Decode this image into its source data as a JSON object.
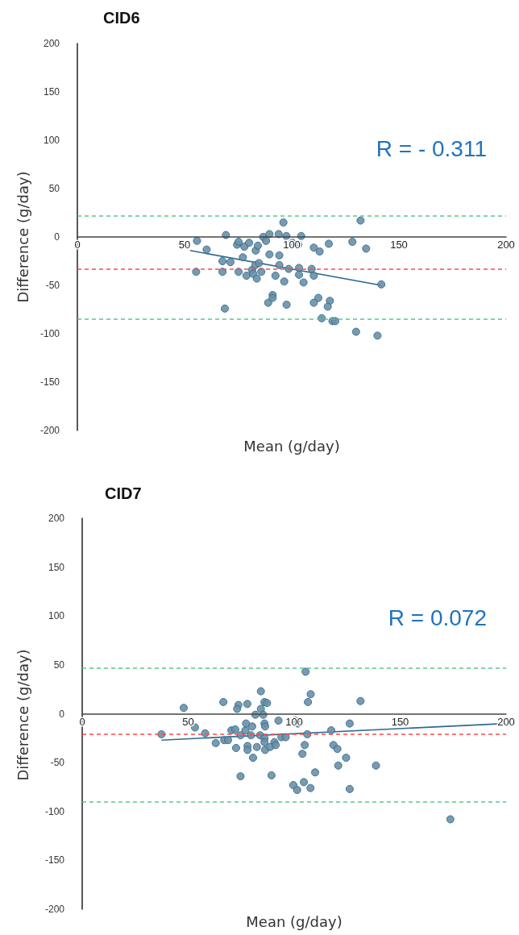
{
  "chart_data": [
    {
      "type": "scatter",
      "title": "CID6",
      "xlabel": "Mean (g/day)",
      "ylabel": "Difference (g/day)",
      "xlim": [
        0,
        200
      ],
      "ylim": [
        -200,
        200
      ],
      "xticks": [
        0,
        50,
        100,
        150,
        200
      ],
      "yticks": [
        -200,
        -150,
        -100,
        -50,
        0,
        50,
        100,
        150,
        200
      ],
      "series": [
        {
          "type": "scatter",
          "marker": "circle",
          "color": "#6b8fa6",
          "x": [
            55.8,
            55.4,
            60.3,
            67.7,
            67.7,
            68.8,
            69.3,
            71.4,
            74.5,
            75.2,
            75.2,
            77.2,
            77.9,
            78.9,
            80.1,
            81.5,
            82,
            83,
            83.2,
            83.7,
            84.2,
            84.7,
            85.8,
            86.7,
            88,
            89.6,
            89.6,
            89,
            91.1,
            91.1,
            92.4,
            93.9,
            94.2,
            94.2,
            96.1,
            96.5,
            97.5,
            97.6,
            98.6,
            100.3,
            103,
            104.4,
            103.4,
            103.4,
            105.5,
            109.3,
            110.3,
            110.3,
            113,
            117.3,
            112.4,
            110.3,
            117.8,
            116.8,
            114,
            119,
            120.3,
            130,
            128.3,
            132.1,
            134.7,
            141.8,
            140
          ],
          "values": [
            -4,
            -36,
            -13,
            -25,
            -36,
            -74,
            2,
            -26,
            -8,
            -5,
            -36,
            -21,
            -10,
            -40,
            -6,
            -34,
            -38,
            -29,
            -14,
            -43,
            -9,
            -27,
            -36,
            0,
            -4,
            3,
            -18,
            -68,
            -60,
            -63,
            -40,
            3,
            -19,
            -29,
            15,
            -46,
            1,
            -70,
            -33,
            -6,
            -8,
            1,
            -32,
            -39,
            -47,
            -33,
            -40,
            -11,
            -15,
            -7,
            -63,
            -68,
            -66,
            -72,
            -84,
            -87,
            -87,
            -98,
            -5,
            17,
            -12,
            -49,
            -102
          ]
        },
        {
          "type": "line",
          "marker": "none",
          "color": "#2e6a8e",
          "x": [
            52.6,
            141.8
          ],
          "values": [
            -14,
            -50
          ]
        }
      ],
      "ref_lines": [
        {
          "axis": "y",
          "value": 22,
          "color": "#55c98a",
          "line_style": "dashed"
        },
        {
          "axis": "y",
          "value": -33,
          "color": "#ff4a4a",
          "line_style": "dashed"
        },
        {
          "axis": "y",
          "value": -85,
          "color": "#55c98a",
          "line_style": "dashed"
        }
      ],
      "annotations": [
        "R = - 0.311"
      ]
    },
    {
      "type": "scatter",
      "title": "CID7",
      "xlabel": "Mean (g/day)",
      "ylabel": "Difference (g/day)",
      "xlim": [
        0,
        200
      ],
      "ylim": [
        -200,
        200
      ],
      "xticks": [
        0,
        50,
        100,
        150,
        200
      ],
      "yticks": [
        -200,
        -150,
        -100,
        -50,
        0,
        50,
        100,
        150,
        200
      ],
      "series": [
        {
          "type": "scatter",
          "marker": "circle",
          "color": "#6b8fa6",
          "x": [
            37.4,
            53.2,
            58,
            63,
            67,
            68.8,
            70.4,
            72.2,
            72.6,
            74.7,
            74.7,
            77,
            77.3,
            78,
            78,
            79.6,
            80.2,
            80.6,
            81.7,
            82.4,
            83.9,
            86,
            86.3,
            86,
            86,
            86.3,
            88.7,
            89.3,
            90.7,
            91.3,
            92.6,
            94,
            96,
            99.6,
            100.4,
            101.8,
            101.4,
            103.9,
            104.6,
            105,
            106.2,
            107.7,
            109.9,
            117.5,
            118.5,
            120.4,
            120.8,
            124.5,
            126.2,
            126.2,
            138.6,
            173.7,
            47.9,
            66.6,
            73.7,
            73.1,
            77.9,
            84.3,
            84.3,
            86,
            87.2,
            85.4,
            105.4,
            107.8,
            106.5,
            131.3
          ],
          "values": [
            -21,
            -14,
            -20,
            -30,
            -27,
            -27,
            -17,
            -16,
            -35,
            -64,
            -22,
            -17,
            -10,
            -33,
            -37,
            -22,
            -13,
            -45,
            -1,
            -34,
            -22,
            -10,
            -13,
            -25,
            -29,
            -37,
            -34,
            -63,
            -29,
            -32,
            -7,
            -24,
            -24,
            -73,
            -7,
            -10,
            -78,
            -41,
            -70,
            -32,
            -21,
            -76,
            -60,
            -17,
            -32,
            -36,
            -53,
            -45,
            -10,
            -77,
            -53,
            -108,
            6,
            12,
            9,
            5,
            10,
            23,
            5,
            12,
            11,
            -1,
            43,
            20,
            12,
            13
          ]
        },
        {
          "type": "line",
          "marker": "none",
          "color": "#2e6a8e",
          "x": [
            37.4,
            200
          ],
          "values": [
            -27,
            -10
          ]
        }
      ],
      "ref_lines": [
        {
          "axis": "y",
          "value": 47,
          "color": "#55c98a",
          "line_style": "dashed"
        },
        {
          "axis": "y",
          "value": -21,
          "color": "#ff4a4a",
          "line_style": "dashed"
        },
        {
          "axis": "y",
          "value": -90,
          "color": "#55c98a",
          "line_style": "dashed"
        }
      ],
      "annotations": [
        "R = 0.072"
      ]
    }
  ]
}
